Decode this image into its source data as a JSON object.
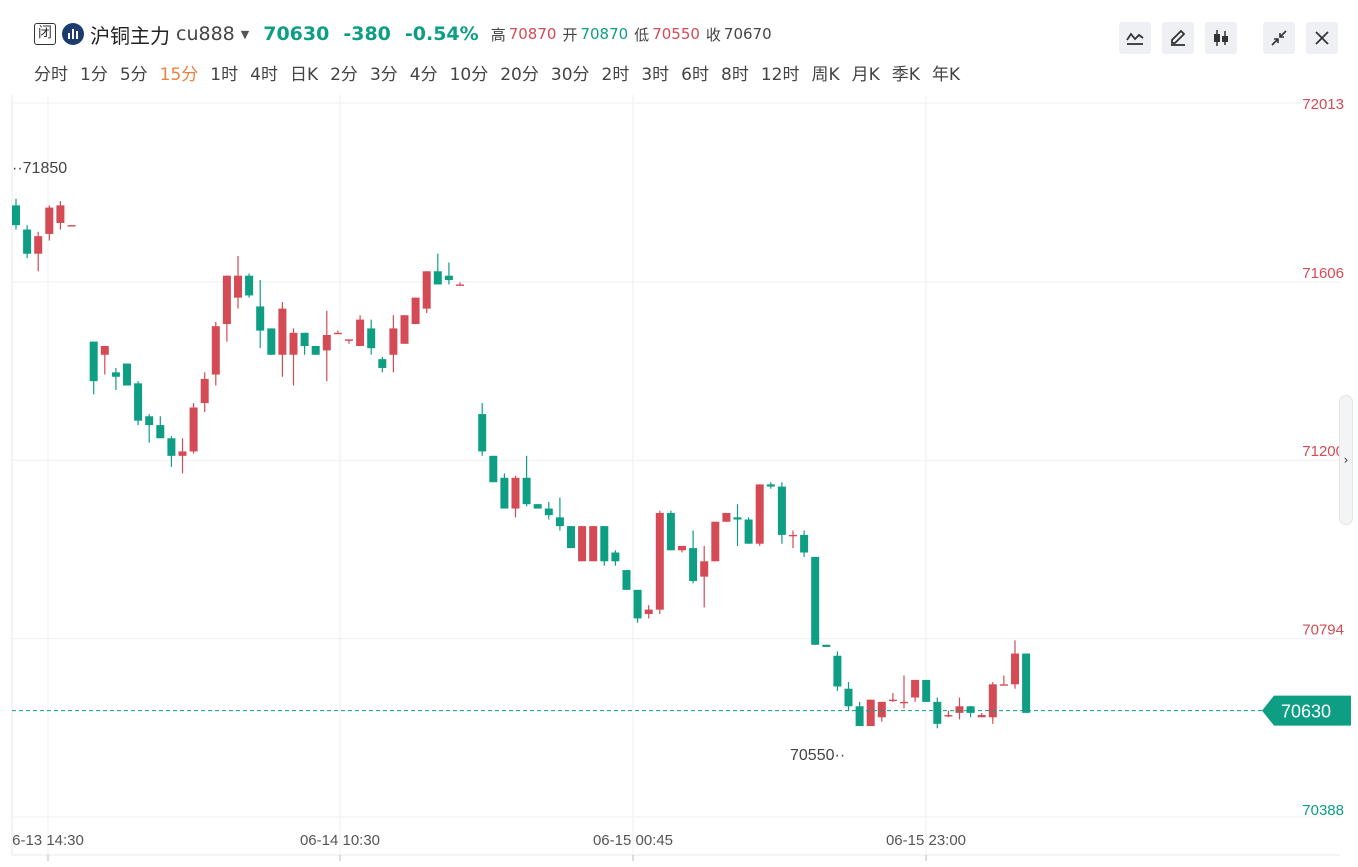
{
  "header": {
    "status": "闭",
    "name": "沪铜主力",
    "code": "cu888",
    "price": "70630",
    "change": "-380",
    "change_pct": "-0.54%",
    "high_label": "高",
    "high": "70870",
    "open_label": "开",
    "open": "70870",
    "low_label": "低",
    "low": "70550",
    "close_label": "收",
    "close": "70670"
  },
  "toolbar": {
    "icons": [
      "line-style-icon",
      "draw-pen-icon",
      "candle-style-icon",
      "shrink-icon",
      "close-icon"
    ]
  },
  "periods": [
    "分时",
    "1分",
    "5分",
    "15分",
    "1时",
    "4时",
    "日K",
    "2分",
    "3分",
    "4分",
    "10分",
    "20分",
    "30分",
    "2时",
    "3时",
    "6时",
    "8时",
    "12时",
    "周K",
    "月K",
    "季K",
    "年K"
  ],
  "active_period": "15分",
  "colors": {
    "up": "#d44a55",
    "down": "#0d9e84",
    "grid": "#eef0f2",
    "axis_text_red": "#d44a55",
    "axis_text_green": "#0d9e84"
  },
  "chart_data": {
    "type": "candlestick",
    "yticks": [
      72013,
      71606,
      71200,
      70794,
      70388
    ],
    "ytick_labels": [
      "72013",
      "71606",
      "71200",
      "70794",
      "70388"
    ],
    "ylim": [
      70388,
      72013
    ],
    "xtick_labels": [
      "6-13 14:30",
      "06-14 10:30",
      "06-15 00:45",
      "06-15 23:00"
    ],
    "last_price": 70630,
    "last_price_label": "70630",
    "max_label": "71850",
    "min_label": "70550",
    "grid": true,
    "candles": [
      [
        71780,
        71795,
        71725,
        71735
      ],
      [
        71725,
        71735,
        71660,
        71670
      ],
      [
        71670,
        71720,
        71630,
        71710
      ],
      [
        71715,
        71780,
        71700,
        71775
      ],
      [
        71740,
        71790,
        71725,
        71780
      ],
      [
        71735,
        71735,
        71735,
        71735
      ],
      [
        null,
        null,
        null,
        null
      ],
      [
        71470,
        71470,
        71350,
        71380
      ],
      [
        71440,
        71440,
        71395,
        71460
      ],
      [
        71400,
        71410,
        71360,
        71390
      ],
      [
        71420,
        71405,
        71370,
        71370
      ],
      [
        71375,
        71380,
        71280,
        71290
      ],
      [
        71300,
        71305,
        71240,
        71280
      ],
      [
        71280,
        71300,
        71250,
        71250
      ],
      [
        71250,
        71255,
        71185,
        71210
      ],
      [
        71210,
        71250,
        71170,
        71220
      ],
      [
        71220,
        71330,
        71215,
        71320
      ],
      [
        71330,
        71400,
        71310,
        71385
      ],
      [
        71395,
        71515,
        71370,
        71505
      ],
      [
        71510,
        71620,
        71470,
        71620
      ],
      [
        71570,
        71665,
        71545,
        71620
      ],
      [
        71620,
        71625,
        71570,
        71575
      ],
      [
        71550,
        71610,
        71455,
        71495
      ],
      [
        71500,
        71490,
        71440,
        71440
      ],
      [
        71440,
        71560,
        71390,
        71545
      ],
      [
        71440,
        71500,
        71370,
        71490
      ],
      [
        71490,
        71470,
        71440,
        71460
      ],
      [
        71460,
        71450,
        71440,
        71440
      ],
      [
        71450,
        71540,
        71380,
        71485
      ],
      [
        71490,
        71495,
        71490,
        71490
      ],
      [
        71475,
        71470,
        71465,
        71475
      ],
      [
        71460,
        71530,
        71460,
        71520
      ],
      [
        71500,
        71520,
        71440,
        71455
      ],
      [
        71430,
        71435,
        71400,
        71410
      ],
      [
        71440,
        71530,
        71400,
        71500
      ],
      [
        71465,
        71485,
        71470,
        71530
      ],
      [
        71510,
        71520,
        71520,
        71570
      ],
      [
        71545,
        71620,
        71535,
        71630
      ],
      [
        71630,
        71670,
        71600,
        71600
      ],
      [
        71620,
        71650,
        71600,
        71610
      ],
      [
        71600,
        71605,
        71600,
        71600
      ],
      [
        null,
        null,
        null,
        null
      ],
      [
        71305,
        71330,
        71210,
        71220
      ],
      [
        71210,
        71210,
        71150,
        71150
      ],
      [
        71160,
        71170,
        71090,
        71090
      ],
      [
        71090,
        71165,
        71070,
        71160
      ],
      [
        71160,
        71210,
        71095,
        71100
      ],
      [
        71100,
        71100,
        71090,
        71090
      ],
      [
        71090,
        71105,
        71065,
        71075
      ],
      [
        71070,
        71115,
        71040,
        71050
      ],
      [
        71050,
        71050,
        71000,
        71000
      ],
      [
        70970,
        71050,
        70970,
        71050
      ],
      [
        70970,
        71050,
        70970,
        71050
      ],
      [
        71050,
        71040,
        70960,
        70970
      ],
      [
        70990,
        70995,
        70960,
        70970
      ],
      [
        70950,
        70950,
        70905,
        70905
      ],
      [
        70905,
        70905,
        70830,
        70840
      ],
      [
        70850,
        70870,
        70840,
        70860
      ],
      [
        70860,
        71085,
        70850,
        71080
      ],
      [
        71080,
        71085,
        70995,
        70995
      ],
      [
        70995,
        71005,
        70990,
        71005
      ],
      [
        71000,
        71040,
        70920,
        70925
      ],
      [
        70935,
        71005,
        70865,
        70970
      ],
      [
        70970,
        71060,
        70970,
        71060
      ],
      [
        71060,
        71080,
        71065,
        71080
      ],
      [
        71070,
        71100,
        71005,
        71065
      ],
      [
        71065,
        71070,
        71010,
        71010
      ],
      [
        71010,
        71140,
        71005,
        71145
      ],
      [
        71145,
        71150,
        71135,
        71140
      ],
      [
        71140,
        71150,
        71010,
        71030
      ],
      [
        71030,
        71040,
        71000,
        71030
      ],
      [
        71030,
        71040,
        70980,
        70990
      ],
      [
        70980,
        70980,
        70780,
        70780
      ],
      [
        70780,
        70780,
        70775,
        70775
      ],
      [
        70755,
        70765,
        70675,
        70685
      ],
      [
        70680,
        70695,
        70630,
        70640
      ],
      [
        70640,
        70650,
        70600,
        70595
      ],
      [
        70595,
        70595,
        70600,
        70655
      ],
      [
        70615,
        70640,
        70605,
        70650
      ],
      [
        70655,
        70670,
        70650,
        70655
      ],
      [
        70650,
        70710,
        70635,
        70650
      ],
      [
        70660,
        70700,
        70650,
        70700
      ],
      [
        70700,
        70700,
        70650,
        70650
      ],
      [
        70650,
        70660,
        70590,
        70600
      ],
      [
        70620,
        70630,
        70615,
        70620
      ],
      [
        70625,
        70660,
        70610,
        70640
      ],
      [
        70640,
        70640,
        70615,
        70625
      ],
      [
        70615,
        70625,
        70620,
        70620
      ],
      [
        70615,
        70695,
        70600,
        70690
      ],
      [
        70690,
        70710,
        70690,
        70690
      ],
      [
        70690,
        70790,
        70680,
        70760
      ],
      [
        70760,
        70760,
        70625,
        70625
      ]
    ]
  }
}
